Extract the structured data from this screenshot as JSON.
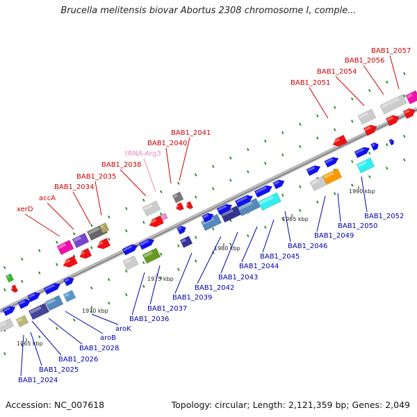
{
  "header": {
    "title": "Brucella melitensis biovar Abortus 2308 chromosome I, comple..."
  },
  "footer": {
    "accession": "Accession: NC_007618",
    "summary": "Topology: circular; Length: 2,121,359 bp; Genes: 2,049"
  },
  "colors": {
    "label_red": "#cc0000",
    "label_blue": "#0000aa",
    "label_trna": "#ee88bb",
    "backbone": "#888888"
  },
  "scale_labels": [
    "1965 kbp",
    "1970 kbp",
    "1975 kbp",
    "1980 kbp",
    "1985 kbp",
    "1990 kbp"
  ],
  "genes_top": [
    "xerD",
    "accA",
    "BAB1_2034",
    "BAB1_2035",
    "BAB1_2038",
    "tRNA-Arg3",
    "BAB1_2040",
    "BAB1_2041",
    "BAB1_2051",
    "BAB1_2054",
    "BAB1_2056",
    "BAB1_2057"
  ],
  "genes_bottom": [
    "BAB1_2024",
    "BAB1_2025",
    "BAB1_2026",
    "BAB1_2028",
    "aroB",
    "aroK",
    "BAB1_2036",
    "BAB1_2037",
    "BAB1_2039",
    "BAB1_2042",
    "BAB1_2043",
    "BAB1_2044",
    "BAB1_2045",
    "BAB1_2046",
    "BAB1_2049",
    "BAB1_2050",
    "BAB1_2052"
  ]
}
